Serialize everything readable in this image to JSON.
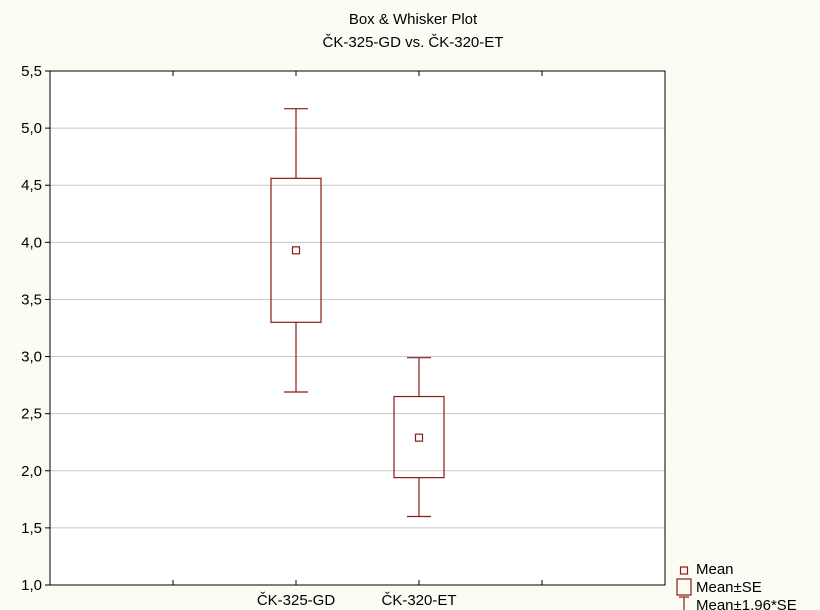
{
  "chart_data": {
    "type": "box",
    "title": "Box & Whisker Plot",
    "subtitle": "ČK-325-GD vs. ČK-320-ET",
    "categories": [
      "ČK-325-GD",
      "ČK-320-ET"
    ],
    "ylim": [
      1.0,
      5.5
    ],
    "yticks": [
      "1,0",
      "1,5",
      "2,0",
      "2,5",
      "3,0",
      "3,5",
      "4,0",
      "4,5",
      "5,0",
      "5,5"
    ],
    "ytick_values": [
      1.0,
      1.5,
      2.0,
      2.5,
      3.0,
      3.5,
      4.0,
      4.5,
      5.0,
      5.5
    ],
    "series": [
      {
        "category": "ČK-325-GD",
        "mean": 3.93,
        "se_low": 3.3,
        "se_high": 4.56,
        "ci_low": 2.69,
        "ci_high": 5.17
      },
      {
        "category": "ČK-320-ET",
        "mean": 2.29,
        "se_low": 1.94,
        "se_high": 2.65,
        "ci_low": 1.6,
        "ci_high": 2.99
      }
    ],
    "legend": {
      "position": "bottom-right",
      "items": [
        "Mean",
        "Mean±SE",
        "Mean±1,96*SE"
      ]
    },
    "grid": true,
    "colors": {
      "mark": "#8b1a1a",
      "grid": "#c8c8c8",
      "frame": "#000000",
      "plot_bg": "#ffffff",
      "page_bg": "#fcfcf4"
    }
  }
}
